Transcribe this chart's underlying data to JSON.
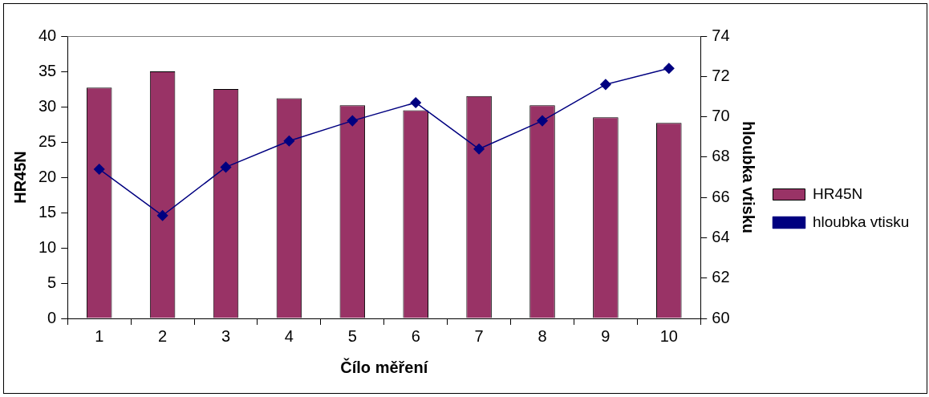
{
  "chart_data": {
    "type": "bar",
    "xlabel": "Čílo měření",
    "ylabel": "HR45N",
    "y2label": "hloubka vtisku",
    "categories": [
      "1",
      "2",
      "3",
      "4",
      "5",
      "6",
      "7",
      "8",
      "9",
      "10"
    ],
    "series": [
      {
        "name": "HR45N",
        "color": "#993366",
        "values": [
          32.7,
          35,
          32.5,
          31.2,
          30.2,
          29.5,
          31.5,
          30.2,
          28.5,
          27.7
        ]
      },
      {
        "name": "hloubka vtisku",
        "type": "line",
        "axis": "y2",
        "color": "#000080",
        "marker": "diamond",
        "values": [
          67.4,
          65.1,
          67.5,
          68.8,
          69.8,
          70.7,
          68.4,
          69.8,
          71.6,
          72.4
        ]
      }
    ],
    "ylim": [
      0,
      40
    ],
    "yticks": [
      0,
      5,
      10,
      15,
      20,
      25,
      30,
      35,
      40
    ],
    "y2lim": [
      60,
      74
    ],
    "y2ticks": [
      60,
      62,
      64,
      66,
      68,
      70,
      72,
      74
    ],
    "grid": false,
    "legend": "right"
  }
}
